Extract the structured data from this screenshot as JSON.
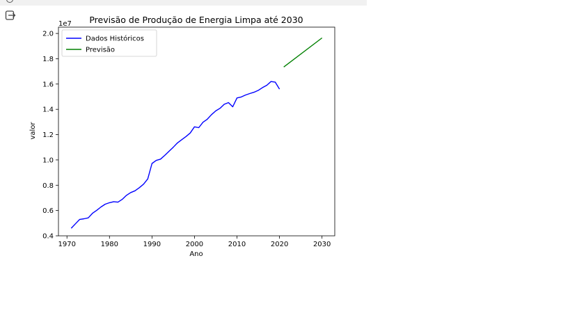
{
  "output_area": {
    "exit_icon": "output-exit-icon",
    "status_icon": "circle-icon"
  },
  "chart_data": {
    "type": "line",
    "title": "Previsão de Produção de Energia Limpa até 2030",
    "xlabel": "Ano",
    "ylabel": "valor",
    "y_offset_text": "1e7",
    "xlim": [
      1968,
      2033
    ],
    "ylim": [
      4000000,
      20500000
    ],
    "x_ticks": [
      1970,
      1980,
      1990,
      2000,
      2010,
      2020,
      2030
    ],
    "y_ticks": [
      4000000,
      6000000,
      8000000,
      10000000,
      12000000,
      14000000,
      16000000,
      18000000,
      20000000
    ],
    "y_tick_labels": [
      "0.4",
      "0.6",
      "0.8",
      "1.0",
      "1.2",
      "1.4",
      "1.6",
      "1.8",
      "2.0"
    ],
    "legend_position": "top-left",
    "series": [
      {
        "name": "Dados Históricos",
        "color": "#0000ff",
        "x": [
          1971,
          1972,
          1973,
          1974,
          1975,
          1976,
          1977,
          1978,
          1979,
          1980,
          1981,
          1982,
          1983,
          1984,
          1985,
          1986,
          1987,
          1988,
          1989,
          1990,
          1991,
          1992,
          1993,
          1994,
          1995,
          1996,
          1997,
          1998,
          1999,
          2000,
          2001,
          2002,
          2003,
          2004,
          2005,
          2006,
          2007,
          2008,
          2009,
          2010,
          2011,
          2012,
          2013,
          2014,
          2015,
          2016,
          2017,
          2018,
          2019,
          2020
        ],
        "y": [
          4600000,
          4950000,
          5300000,
          5350000,
          5420000,
          5780000,
          6020000,
          6280000,
          6500000,
          6620000,
          6700000,
          6660000,
          6880000,
          7200000,
          7420000,
          7560000,
          7800000,
          8080000,
          8500000,
          9720000,
          9960000,
          10060000,
          10360000,
          10680000,
          11000000,
          11350000,
          11600000,
          11850000,
          12130000,
          12620000,
          12550000,
          12980000,
          13220000,
          13580000,
          13880000,
          14080000,
          14400000,
          14530000,
          14200000,
          14900000,
          14980000,
          15130000,
          15250000,
          15350000,
          15500000,
          15720000,
          15900000,
          16200000,
          16150000,
          15600000
        ]
      },
      {
        "name": "Previsão",
        "color": "#008000",
        "x": [
          2021,
          2030
        ],
        "y": [
          17350000,
          19650000
        ]
      }
    ]
  }
}
